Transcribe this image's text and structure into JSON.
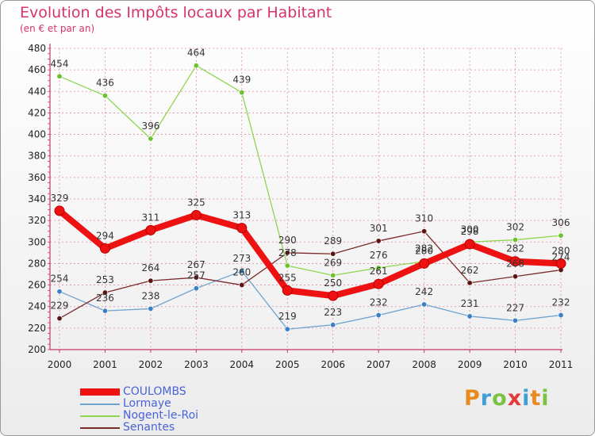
{
  "header": {
    "title": "Evolution des Impôts locaux par Habitant",
    "subtitle": "(en € et par an)"
  },
  "colors": {
    "coulombs": "#ee1111",
    "lormaye": "#6fa3cf",
    "nogent": "#8ed64f",
    "senantes": "#7a2a2a",
    "grid": "#e38aa6",
    "axis": "#c8356a"
  },
  "logo": {
    "letters": [
      "P",
      "r",
      "o",
      "x",
      "i",
      "t",
      "i"
    ]
  },
  "chart_data": {
    "type": "line",
    "title": "Evolution des Impôts locaux par Habitant",
    "subtitle": "(en € et par an)",
    "xlabel": "",
    "ylabel": "",
    "x": [
      "2000",
      "2001",
      "2002",
      "2003",
      "2004",
      "2005",
      "2006",
      "2007",
      "2008",
      "2009",
      "2010",
      "2011"
    ],
    "ylim": [
      200,
      480
    ],
    "yticks": [
      200,
      220,
      240,
      260,
      280,
      300,
      320,
      340,
      360,
      380,
      400,
      420,
      440,
      460,
      480
    ],
    "legend_position": "bottom-left",
    "series": [
      {
        "name": "COULOMBS",
        "key": "coulombs",
        "values": [
          329,
          294,
          311,
          325,
          313,
          255,
          250,
          261,
          280,
          298,
          282,
          280
        ]
      },
      {
        "name": "Lormaye",
        "key": "lormaye",
        "values": [
          254,
          236,
          238,
          257,
          273,
          219,
          223,
          232,
          242,
          231,
          227,
          232
        ]
      },
      {
        "name": "Nogent-le-Roi",
        "key": "nogent",
        "values": [
          454,
          436,
          396,
          464,
          439,
          278,
          269,
          276,
          282,
          300,
          302,
          306
        ]
      },
      {
        "name": "Senantes",
        "key": "senantes",
        "values": [
          229,
          253,
          264,
          267,
          260,
          290,
          289,
          301,
          310,
          262,
          268,
          274
        ]
      }
    ]
  }
}
